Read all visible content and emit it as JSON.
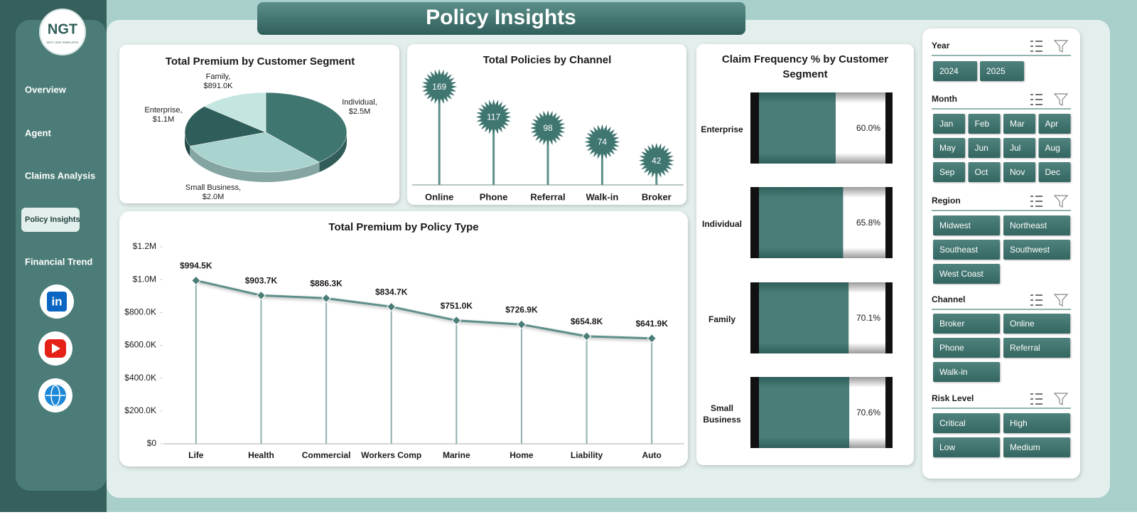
{
  "header": {
    "title": "Policy Insights"
  },
  "logo": {
    "text": "NGT",
    "subtitle": "NEXT GEN TEMPLATES"
  },
  "nav": {
    "items": [
      "Overview",
      "Agent",
      "Claims Analysis",
      "Policy Insights",
      "Financial Trend"
    ],
    "active": 3
  },
  "chart_data": [
    {
      "type": "pie",
      "title": "Total Premium by Customer Segment",
      "categories": [
        "Individual,",
        "Small Business,",
        "Enterprise,",
        "Family,"
      ],
      "values": [
        2500000,
        2000000,
        1100000,
        891000
      ],
      "value_labels": [
        "$2.5M",
        "$2.0M",
        "$1.1M",
        "$891.0K"
      ],
      "colors": [
        "#3f7670",
        "#a9d3ce",
        "#2f5e5a",
        "#c4e6e0"
      ]
    },
    {
      "type": "lollipop",
      "title": "Total Policies by Channel",
      "categories": [
        "Online",
        "Phone",
        "Referral",
        "Walk-in",
        "Broker"
      ],
      "values": [
        169,
        117,
        98,
        74,
        42
      ],
      "color": "#3f7670"
    },
    {
      "type": "progress",
      "title": "Claim Frequency % by Customer Segment",
      "categories": [
        "Enterprise",
        "Individual",
        "Family",
        "Small Business"
      ],
      "values": [
        60.0,
        65.8,
        70.1,
        70.6
      ],
      "value_labels": [
        "60.0%",
        "65.8%",
        "70.1%",
        "70.6%"
      ],
      "xlim": [
        0,
        100
      ],
      "color": "#4a7d77"
    },
    {
      "type": "line",
      "title": "Total Premium by Policy Type",
      "categories": [
        "Life",
        "Health",
        "Commercial",
        "Workers Comp",
        "Marine",
        "Home",
        "Liability",
        "Auto"
      ],
      "values": [
        994500,
        903700,
        886300,
        834700,
        751000,
        726900,
        654800,
        641900
      ],
      "value_labels": [
        "$994.5K",
        "$903.7K",
        "$886.3K",
        "$834.7K",
        "$751.0K",
        "$726.9K",
        "$654.8K",
        "$641.9K"
      ],
      "ylim": [
        0,
        1200000
      ],
      "yticks": [
        {
          "value": 0,
          "label": "$0"
        },
        {
          "value": 200000,
          "label": "$200.0K"
        },
        {
          "value": 400000,
          "label": "$400.0K"
        },
        {
          "value": 600000,
          "label": "$600.0K"
        },
        {
          "value": 800000,
          "label": "$800.0K"
        },
        {
          "value": 1000000,
          "label": "$1.0M"
        },
        {
          "value": 1200000,
          "label": "$1.2M"
        }
      ],
      "color": "#5e8f8a"
    }
  ],
  "slicers": [
    {
      "title": "Year",
      "items": [
        "2024",
        "2025"
      ]
    },
    {
      "title": "Month",
      "items": [
        "Jan",
        "Feb",
        "Mar",
        "Apr",
        "May",
        "Jun",
        "Jul",
        "Aug",
        "Sep",
        "Oct",
        "Nov",
        "Dec"
      ]
    },
    {
      "title": "Region",
      "items": [
        "Midwest",
        "Northeast",
        "Southeast",
        "Southwest",
        "West Coast"
      ]
    },
    {
      "title": "Channel",
      "items": [
        "Broker",
        "Online",
        "Phone",
        "Referral",
        "Walk-in"
      ]
    },
    {
      "title": "Risk Level",
      "items": [
        "Critical",
        "High",
        "Low",
        "Medium"
      ]
    }
  ]
}
